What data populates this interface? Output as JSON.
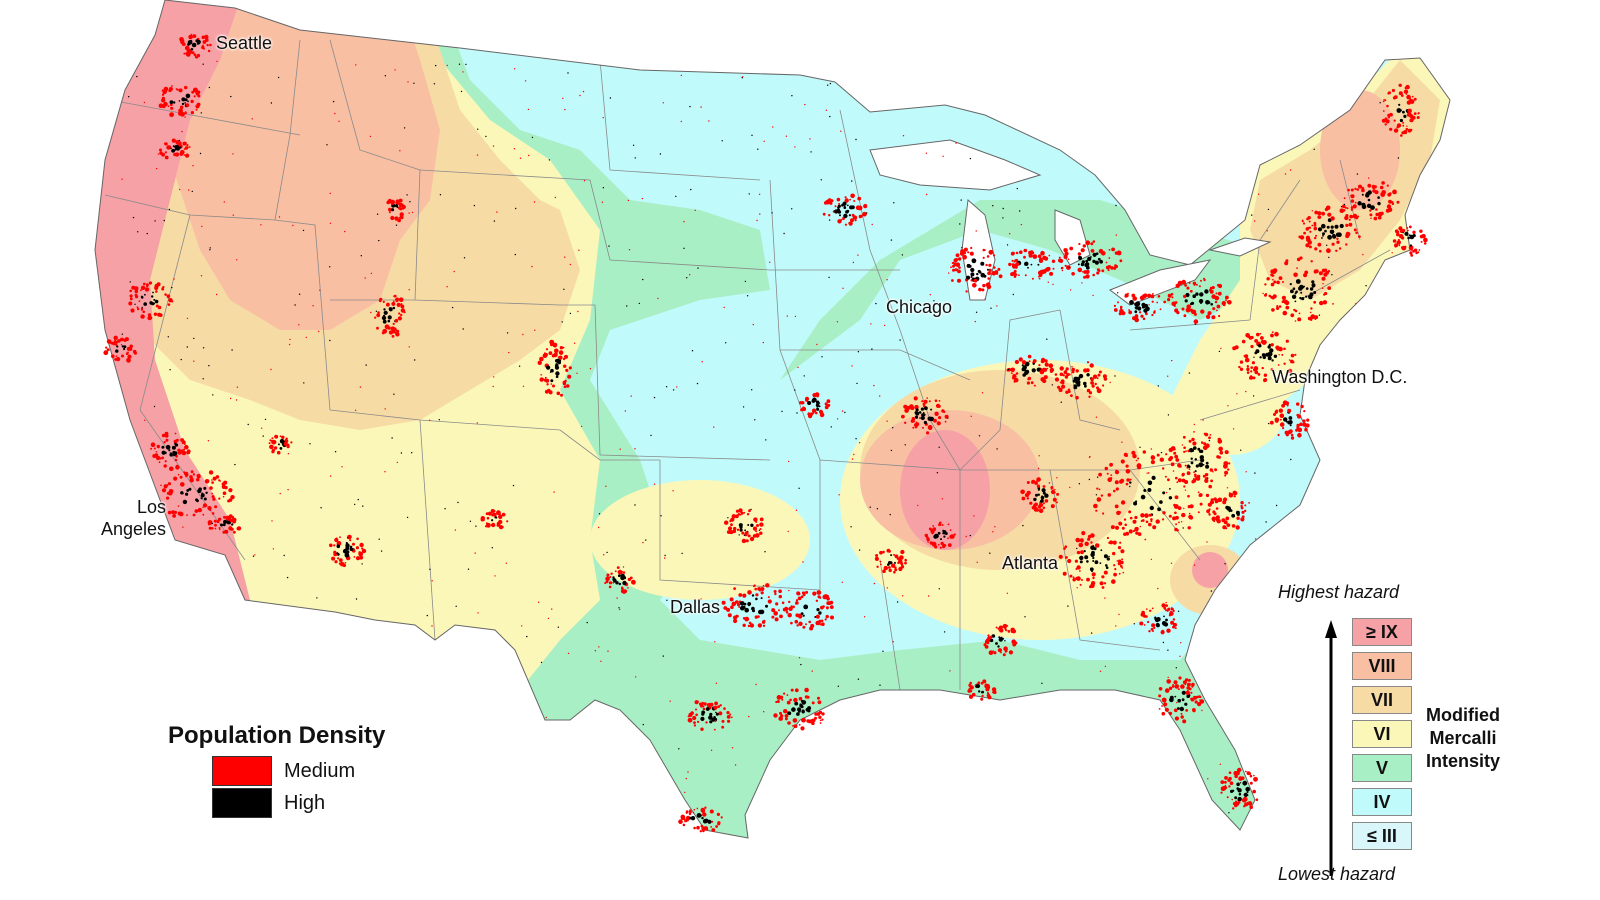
{
  "colors": {
    "ocean": "#ffffff",
    "land_base": "#c1fafa",
    "mmi_ge9": "#f6a1a6",
    "mmi_8": "#f8bfa3",
    "mmi_7": "#f6dba5",
    "mmi_6": "#fbf7b9",
    "mmi_5": "#a9efc5",
    "mmi_4": "#c1fafa",
    "mmi_le3": "#d9f6fb",
    "pop_medium": "#ff0000",
    "pop_high": "#000000",
    "state_border": "#8a8a8a"
  },
  "cities": {
    "seattle": "Seattle",
    "los_angeles_line1": "Los",
    "los_angeles_line2": "Angeles",
    "chicago": "Chicago",
    "washington": "Washington D.C.",
    "atlanta": "Atlanta",
    "dallas": "Dallas"
  },
  "population_legend": {
    "title": "Population Density",
    "items": [
      {
        "label": "Medium",
        "color": "#ff0000"
      },
      {
        "label": "High",
        "color": "#000000"
      }
    ]
  },
  "mmi_legend": {
    "top_label": "Highest hazard",
    "bottom_label": "Lowest hazard",
    "title_line1": "Modified",
    "title_line2": "Mercalli",
    "title_line3": "Intensity",
    "levels": [
      {
        "label": "≥ IX",
        "color": "#f6a1a6"
      },
      {
        "label": "VIII",
        "color": "#f8bfa3"
      },
      {
        "label": "VII",
        "color": "#f6dba5"
      },
      {
        "label": "VI",
        "color": "#fbf7b9"
      },
      {
        "label": "V",
        "color": "#a9efc5"
      },
      {
        "label": "IV",
        "color": "#c1fafa"
      },
      {
        "label": "≤ III",
        "color": "#d9f6fb"
      }
    ]
  }
}
